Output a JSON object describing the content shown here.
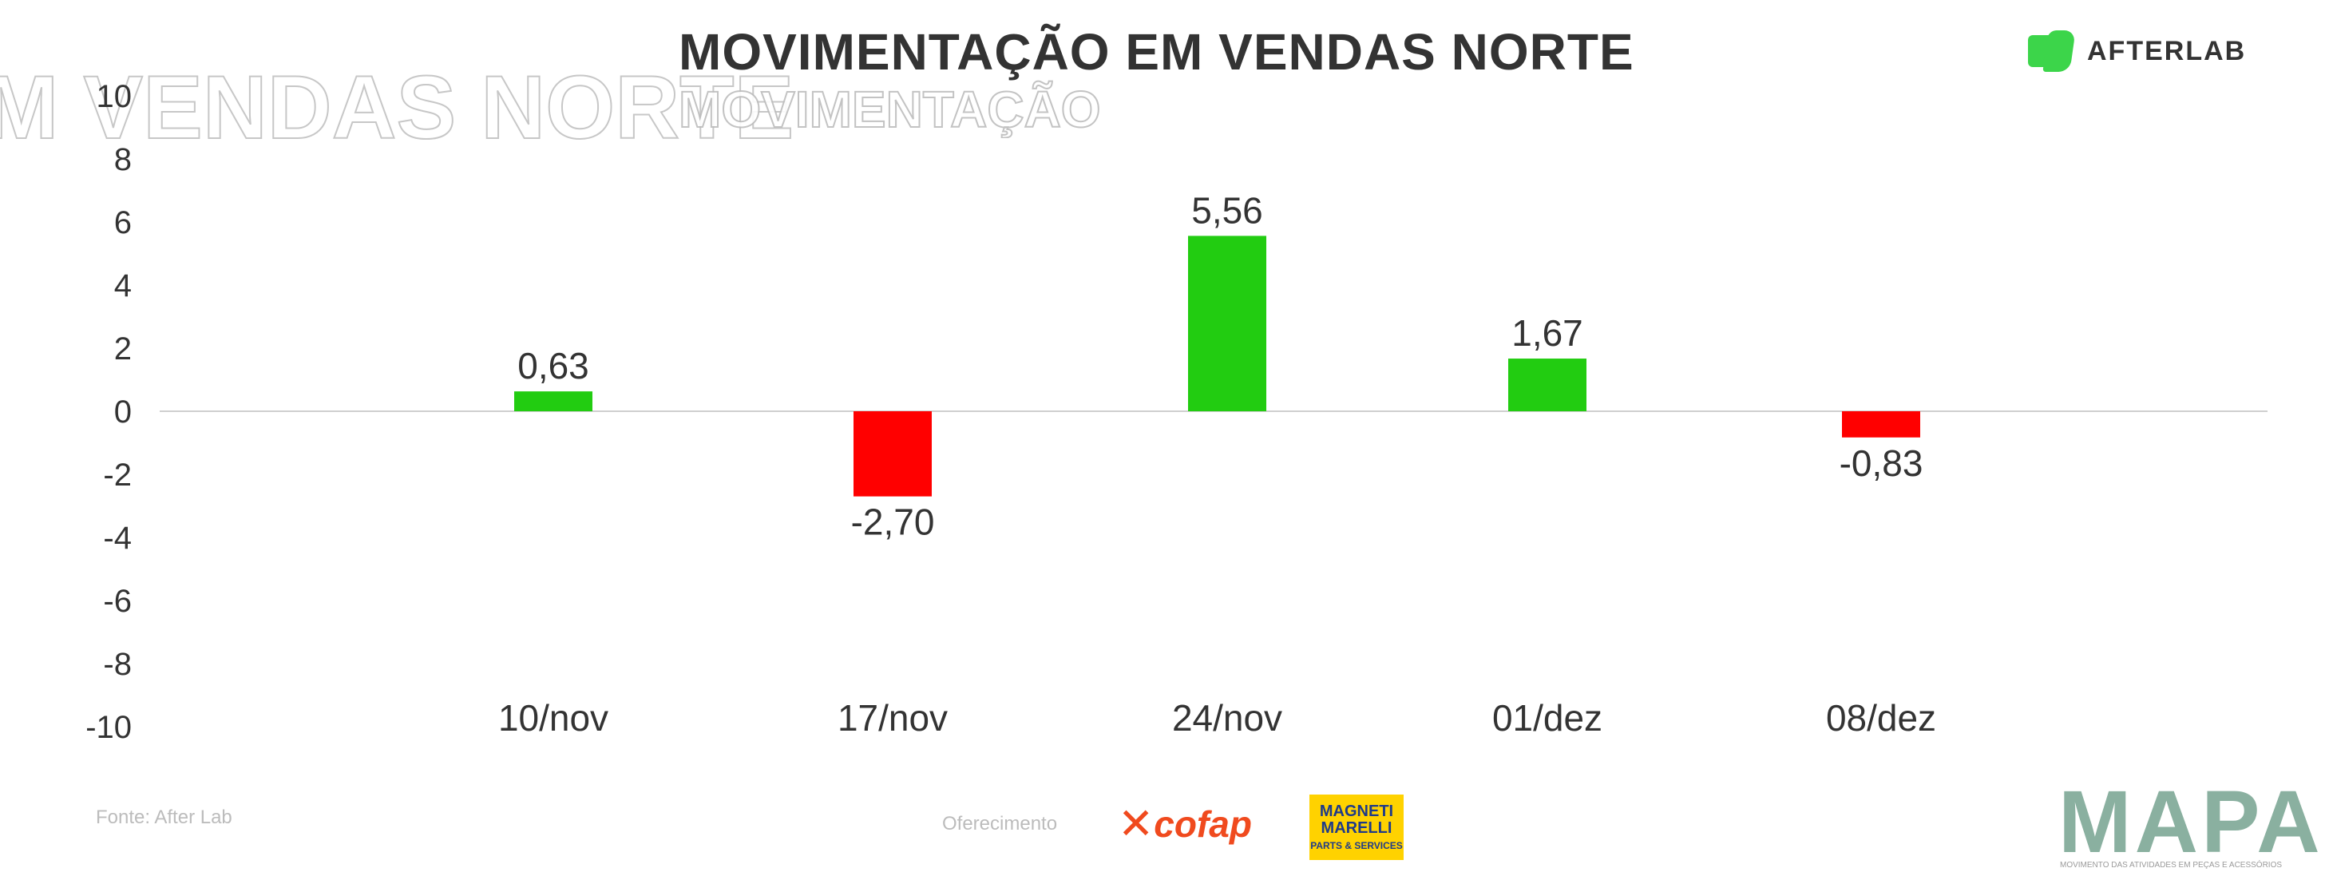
{
  "title": "MOVIMENTAÇÃO EM VENDAS NORTE",
  "title_ghost": "MOVIMENTAÇÃO",
  "title_ghost_left": "M VENDAS NORTE",
  "brand": {
    "name": "AFTERLAB",
    "accent": "#3cd54a"
  },
  "footer": {
    "source": "Fonte: After Lab",
    "offered_by": "Oferecimento",
    "sponsor_1": "cofap",
    "sponsor_2_name": "MAGNETI MARELLI",
    "sponsor_2_tagline": "PARTS & SERVICES",
    "mapa": "MAPA",
    "mapa_tagline": "MOVIMENTO DAS ATIVIDADES EM PEÇAS E ACESSÓRIOS"
  },
  "chart_data": {
    "type": "bar",
    "title": "MOVIMENTAÇÃO EM VENDAS NORTE",
    "categories": [
      "10/nov",
      "17/nov",
      "24/nov",
      "01/dez",
      "08/dez"
    ],
    "values": [
      0.63,
      -2.7,
      5.56,
      1.67,
      -0.83
    ],
    "value_labels": [
      "0,63",
      "-2,70",
      "5,56",
      "1,67",
      "-0,83"
    ],
    "ylim": [
      -10,
      10
    ],
    "yticks": [
      10,
      8,
      6,
      4,
      2,
      0,
      -2,
      -4,
      -6,
      -8,
      -10
    ],
    "grid": false,
    "legend": "none",
    "positive_color": "#22cc11",
    "negative_color": "#ff0000"
  }
}
